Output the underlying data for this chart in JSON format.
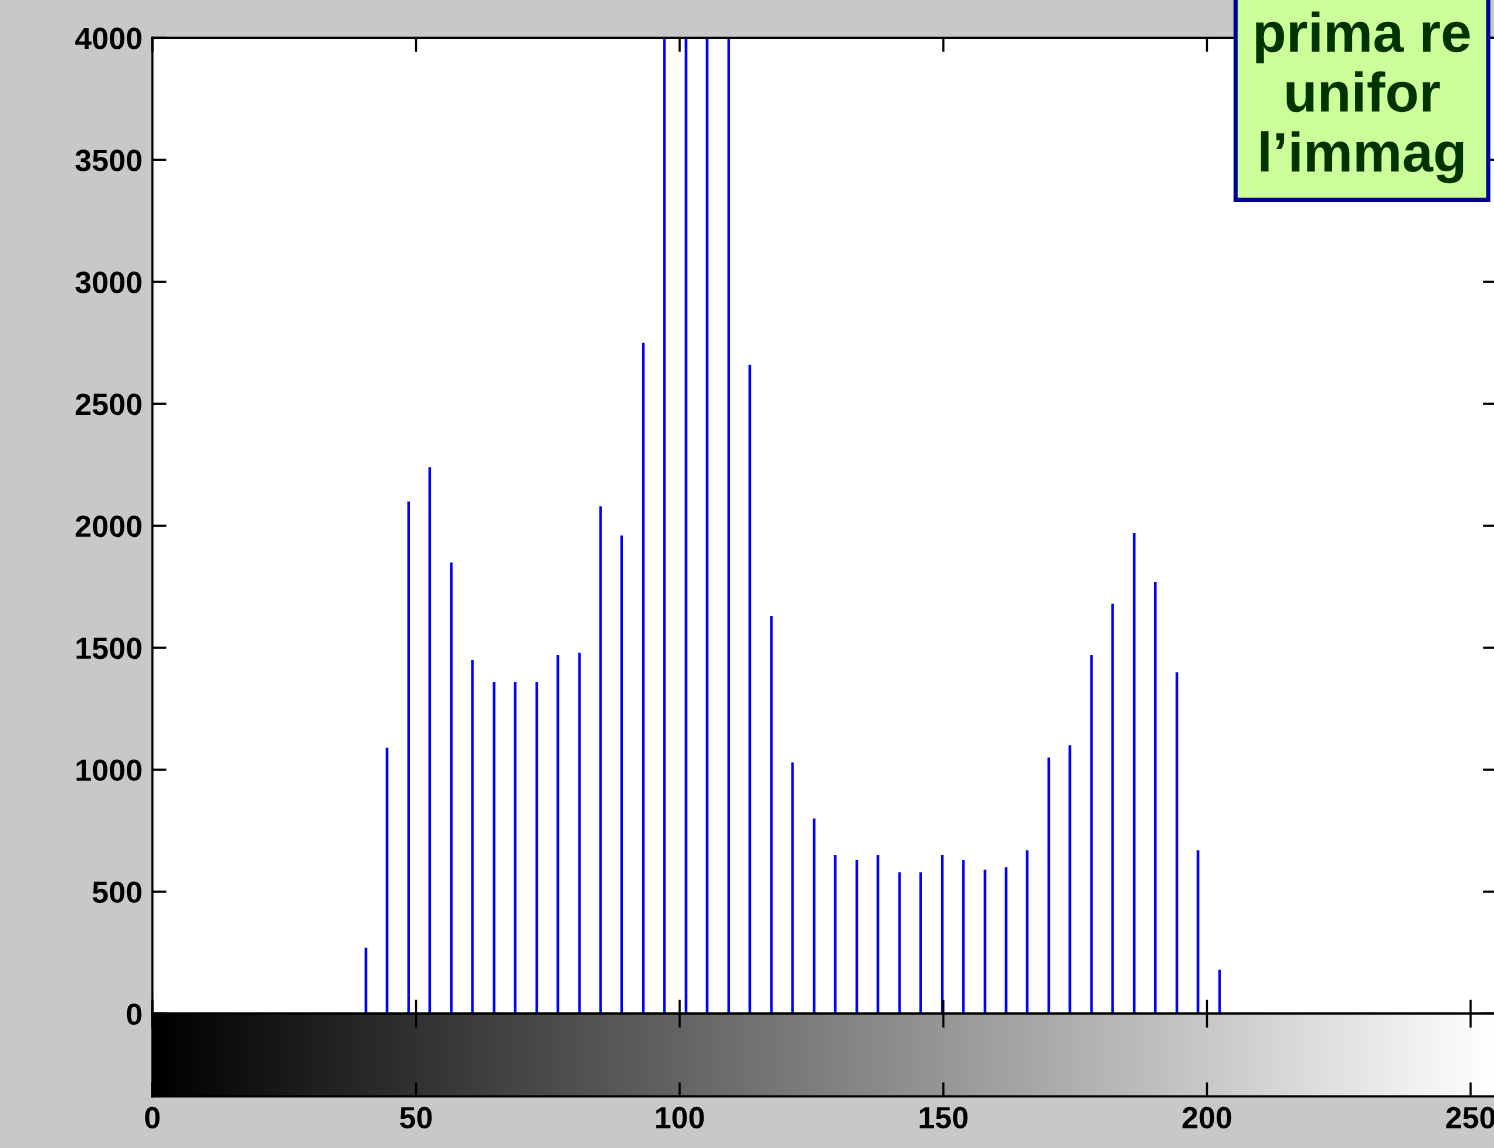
{
  "chart_data": {
    "type": "bar",
    "x": [
      40.5,
      44.5,
      48.6,
      52.6,
      56.7,
      60.7,
      64.8,
      68.8,
      72.9,
      76.9,
      81.0,
      85.0,
      89.0,
      93.1,
      97.1,
      101.2,
      105.2,
      109.3,
      113.3,
      117.4,
      121.4,
      125.5,
      129.5,
      133.6,
      137.6,
      141.7,
      145.7,
      149.8,
      153.8,
      157.9,
      161.9,
      165.9,
      170.0,
      174.0,
      178.1,
      182.1,
      186.2,
      190.2,
      194.3,
      198.3,
      202.4
    ],
    "values": [
      270,
      1090,
      2100,
      2240,
      1850,
      1450,
      1360,
      1360,
      1360,
      1470,
      1480,
      2080,
      1960,
      2750,
      4000,
      4000,
      4000,
      4000,
      2660,
      1630,
      1030,
      800,
      650,
      630,
      650,
      580,
      580,
      650,
      630,
      590,
      600,
      670,
      1050,
      1100,
      1470,
      1680,
      1970,
      1770,
      1400,
      670,
      180
    ],
    "color": "#0000ff",
    "xlim": [
      0,
      255
    ],
    "xticks": [
      0,
      50,
      100,
      150,
      200,
      250
    ],
    "ylim": [
      0,
      4000
    ],
    "yticks": [
      0,
      500,
      1000,
      1500,
      2000,
      2500,
      3000,
      3500,
      4000
    ],
    "grid": false,
    "annotations": [
      "prima re\nunifor\nl’immag"
    ]
  }
}
